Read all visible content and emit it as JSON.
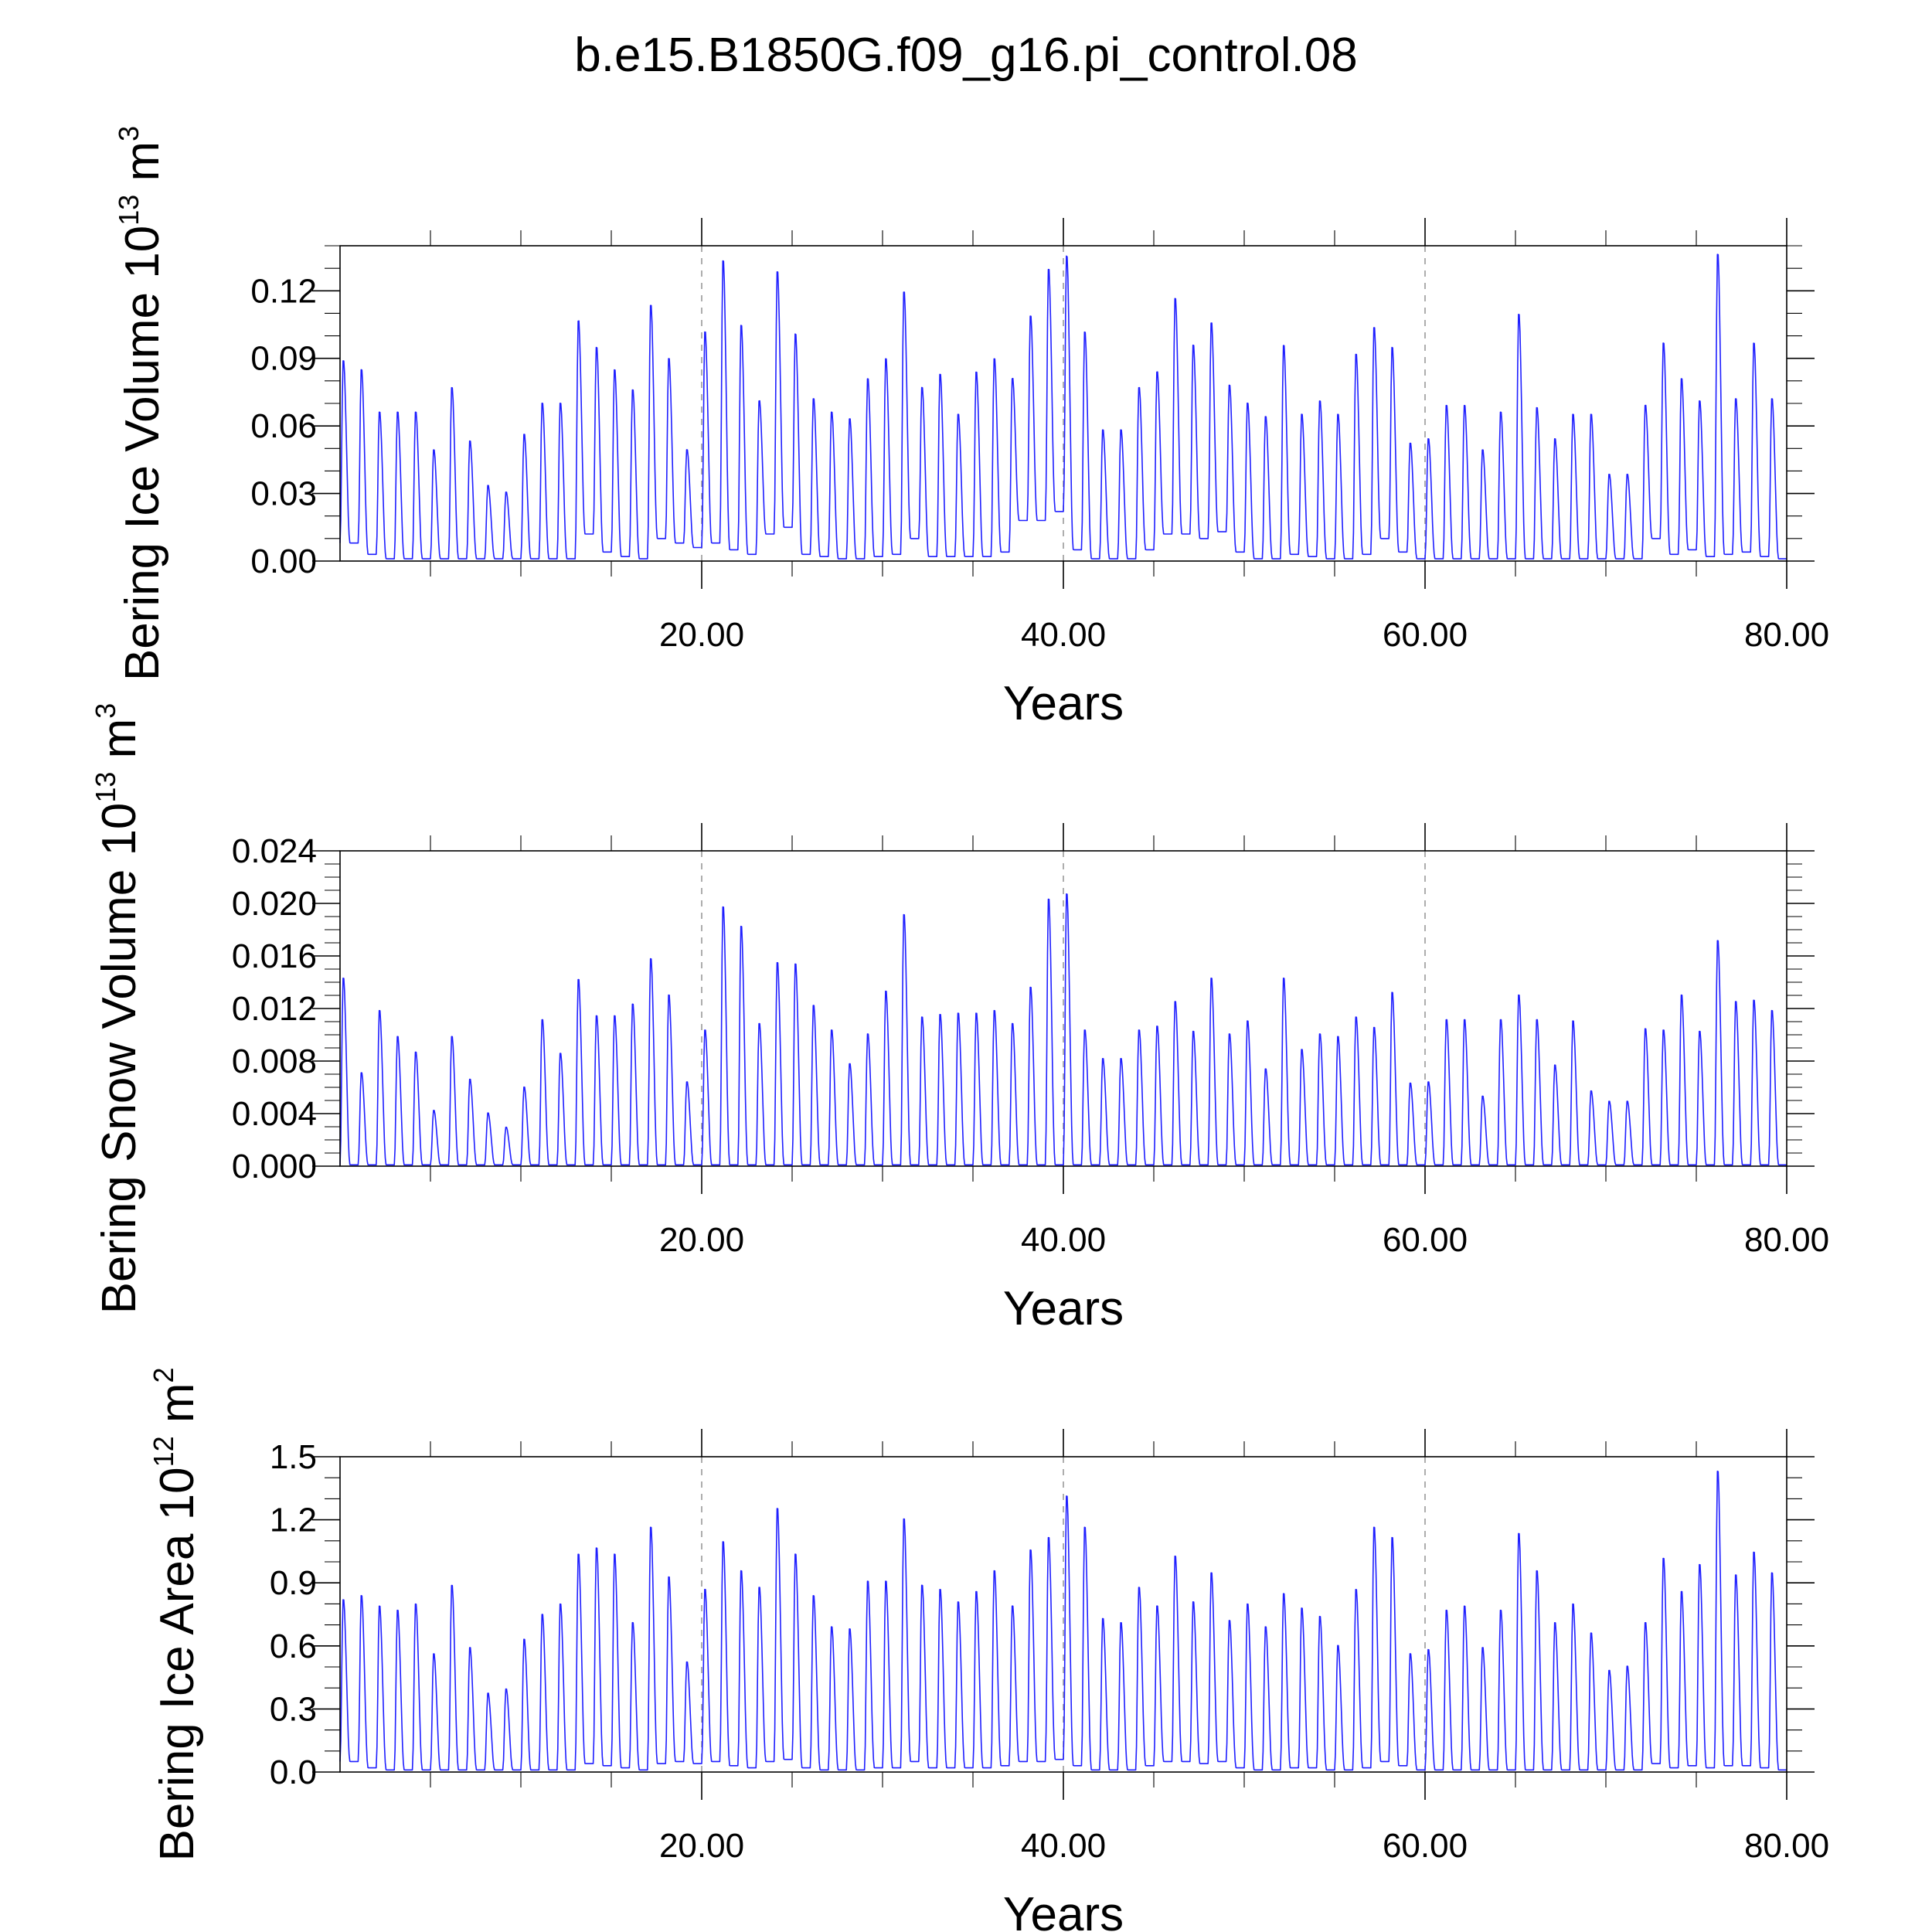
{
  "title": "b.e15.B1850G.f09_g16.pi_control.08",
  "chart_data": [
    {
      "type": "line",
      "id": "ice-volume",
      "ylabel": "Bering Ice Volume 10",
      "ylabel_exp": "13",
      "ylabel_unit": " m",
      "ylabel_unit_exp": "3",
      "xlabel": "Years",
      "xlim": [
        0,
        80
      ],
      "ylim": [
        0,
        0.14
      ],
      "yticks": [
        0,
        0.03,
        0.06,
        0.09,
        0.12
      ],
      "ytick_labels": [
        "0.00",
        "0.03",
        "0.06",
        "0.09",
        "0.12"
      ],
      "yminor": 0.01,
      "xticks": [
        20,
        40,
        60,
        80
      ],
      "xtick_labels": [
        "20.00",
        "40.00",
        "60.00",
        "80.00"
      ],
      "xminor": 5,
      "reflines_x": [
        20,
        40,
        60
      ],
      "series": [
        {
          "color": "#1f1fff",
          "peaks": [
            0.09,
            0.086,
            0.067,
            0.067,
            0.067,
            0.05,
            0.078,
            0.054,
            0.034,
            0.031,
            0.057,
            0.071,
            0.071,
            0.108,
            0.096,
            0.086,
            0.077,
            0.115,
            0.091,
            0.05,
            0.103,
            0.135,
            0.106,
            0.072,
            0.13,
            0.102,
            0.073,
            0.067,
            0.064,
            0.082,
            0.091,
            0.121,
            0.078,
            0.084,
            0.066,
            0.085,
            0.091,
            0.082,
            0.11,
            0.131,
            0.137,
            0.103,
            0.059,
            0.059,
            0.078,
            0.085,
            0.118,
            0.097,
            0.107,
            0.079,
            0.071,
            0.065,
            0.097,
            0.066,
            0.072,
            0.066,
            0.093,
            0.105,
            0.096,
            0.053,
            0.055,
            0.07,
            0.07,
            0.05,
            0.067,
            0.111,
            0.069,
            0.055,
            0.066,
            0.066,
            0.039,
            0.039,
            0.07,
            0.098,
            0.082,
            0.072,
            0.138,
            0.073,
            0.098,
            0.073
          ],
          "troughs": [
            0.008,
            0.003,
            0.001,
            0.001,
            0.001,
            0.001,
            0.001,
            0.001,
            0.001,
            0.001,
            0.001,
            0.001,
            0.001,
            0.012,
            0.004,
            0.002,
            0.001,
            0.01,
            0.008,
            0.006,
            0.008,
            0.005,
            0.003,
            0.012,
            0.015,
            0.003,
            0.002,
            0.001,
            0.001,
            0.002,
            0.003,
            0.01,
            0.002,
            0.002,
            0.002,
            0.002,
            0.004,
            0.018,
            0.018,
            0.022,
            0.005,
            0.001,
            0.001,
            0.001,
            0.005,
            0.012,
            0.012,
            0.01,
            0.013,
            0.004,
            0.001,
            0.001,
            0.003,
            0.002,
            0.001,
            0.001,
            0.003,
            0.01,
            0.004,
            0.001,
            0.001,
            0.001,
            0.001,
            0.001,
            0.001,
            0.001,
            0.001,
            0.001,
            0.001,
            0.001,
            0.001,
            0.001,
            0.01,
            0.003,
            0.005,
            0.002,
            0.003,
            0.004,
            0.002,
            0.001
          ]
        }
      ]
    },
    {
      "type": "line",
      "id": "snow-volume",
      "ylabel": "Bering Snow Volume 10",
      "ylabel_exp": "13",
      "ylabel_unit": " m",
      "ylabel_unit_exp": "3",
      "xlabel": "Years",
      "xlim": [
        0,
        80
      ],
      "ylim": [
        0,
        0.024
      ],
      "yticks": [
        0,
        0.004,
        0.008,
        0.012,
        0.016,
        0.02,
        0.024
      ],
      "ytick_labels": [
        "0.000",
        "0.004",
        "0.008",
        "0.012",
        "0.016",
        "0.020",
        "0.024"
      ],
      "yminor": 0.001,
      "xticks": [
        20,
        40,
        60,
        80
      ],
      "xtick_labels": [
        "20.00",
        "40.00",
        "60.00",
        "80.00"
      ],
      "xminor": 5,
      "reflines_x": [
        20,
        40,
        60
      ],
      "series": [
        {
          "color": "#1f1fff",
          "peaks": [
            0.0145,
            0.0072,
            0.012,
            0.01,
            0.0088,
            0.0043,
            0.01,
            0.0067,
            0.0041,
            0.003,
            0.0061,
            0.0113,
            0.0087,
            0.0144,
            0.0116,
            0.0116,
            0.0125,
            0.016,
            0.0132,
            0.0065,
            0.0105,
            0.02,
            0.0185,
            0.011,
            0.0157,
            0.0156,
            0.0124,
            0.0105,
            0.0079,
            0.0102,
            0.0135,
            0.0194,
            0.0115,
            0.0117,
            0.0118,
            0.0118,
            0.012,
            0.011,
            0.0138,
            0.0206,
            0.021,
            0.0105,
            0.0083,
            0.0083,
            0.0105,
            0.0108,
            0.0127,
            0.0104,
            0.0145,
            0.0102,
            0.0112,
            0.0075,
            0.0145,
            0.009,
            0.0102,
            0.01,
            0.0115,
            0.0107,
            0.0134,
            0.0064,
            0.0065,
            0.0113,
            0.0113,
            0.0054,
            0.0113,
            0.0132,
            0.0113,
            0.0078,
            0.0112,
            0.0058,
            0.005,
            0.005,
            0.0106,
            0.0105,
            0.0132,
            0.0104,
            0.0174,
            0.0127,
            0.0128,
            0.012
          ],
          "troughs": [
            0.0001,
            0.0001,
            0.0001,
            0.0001,
            0.0001,
            0.0001,
            0.0001,
            0.0001,
            0.0001,
            0.0001,
            0.0001,
            0.0001,
            0.0001,
            0.0001,
            0.0001,
            0.0001,
            0.0001,
            0.0001,
            0.0001,
            0.0001,
            0.0001,
            0.0001,
            0.0001,
            0.0001,
            0.0001,
            0.0001,
            0.0001,
            0.0001,
            0.0001,
            0.0001,
            0.0001,
            0.0001,
            0.0001,
            0.0001,
            0.0001,
            0.0001,
            0.0001,
            0.0001,
            0.0001,
            0.0001,
            0.0001,
            0.0001,
            0.0001,
            0.0001,
            0.0001,
            0.0001,
            0.0001,
            0.0001,
            0.0001,
            0.0001,
            0.0001,
            0.0001,
            0.0001,
            0.0001,
            0.0001,
            0.0001,
            0.0001,
            0.0001,
            0.0001,
            0.0001,
            0.0001,
            0.0001,
            0.0001,
            0.0001,
            0.0001,
            0.0001,
            0.0001,
            0.0001,
            0.0001,
            0.0001,
            0.0001,
            0.0001,
            0.0001,
            0.0001,
            0.0001,
            0.0001,
            0.0001,
            0.0001,
            0.0001,
            0.0001
          ]
        }
      ]
    },
    {
      "type": "line",
      "id": "ice-area",
      "ylabel": "Bering Ice Area 10",
      "ylabel_exp": "12",
      "ylabel_unit": " m",
      "ylabel_unit_exp": "2",
      "xlabel": "Years",
      "xlim": [
        0,
        80
      ],
      "ylim": [
        0,
        1.5
      ],
      "yticks": [
        0,
        0.3,
        0.6,
        0.9,
        1.2,
        1.5
      ],
      "ytick_labels": [
        "0.0",
        "0.3",
        "0.6",
        "0.9",
        "1.2",
        "1.5"
      ],
      "yminor": 0.1,
      "xticks": [
        20,
        40,
        60,
        80
      ],
      "xtick_labels": [
        "20.00",
        "40.00",
        "60.00",
        "80.00"
      ],
      "xminor": 5,
      "reflines_x": [
        20,
        40,
        60
      ],
      "series": [
        {
          "color": "#1f1fff",
          "peaks": [
            0.83,
            0.85,
            0.8,
            0.78,
            0.81,
            0.57,
            0.9,
            0.6,
            0.38,
            0.4,
            0.64,
            0.76,
            0.81,
            1.05,
            1.08,
            1.05,
            0.72,
            1.18,
            0.94,
            0.53,
            0.88,
            1.11,
            0.97,
            0.89,
            1.27,
            1.05,
            0.85,
            0.7,
            0.69,
            0.92,
            0.92,
            1.22,
            0.9,
            0.88,
            0.82,
            0.87,
            0.97,
            0.8,
            1.07,
            1.13,
            1.33,
            1.18,
            0.74,
            0.72,
            0.89,
            0.8,
            1.04,
            0.82,
            0.96,
            0.73,
            0.81,
            0.7,
            0.86,
            0.79,
            0.75,
            0.61,
            0.88,
            1.18,
            1.13,
            0.57,
            0.59,
            0.78,
            0.8,
            0.6,
            0.78,
            1.15,
            0.97,
            0.72,
            0.81,
            0.67,
            0.49,
            0.51,
            0.72,
            1.03,
            0.87,
            1.0,
            1.45,
            0.95,
            1.06,
            0.96
          ],
          "troughs": [
            0.05,
            0.02,
            0.01,
            0.01,
            0.01,
            0.01,
            0.01,
            0.01,
            0.01,
            0.01,
            0.01,
            0.01,
            0.01,
            0.04,
            0.03,
            0.02,
            0.01,
            0.04,
            0.05,
            0.04,
            0.05,
            0.03,
            0.02,
            0.05,
            0.06,
            0.02,
            0.01,
            0.01,
            0.01,
            0.02,
            0.02,
            0.05,
            0.02,
            0.02,
            0.02,
            0.02,
            0.03,
            0.05,
            0.05,
            0.06,
            0.03,
            0.01,
            0.01,
            0.01,
            0.03,
            0.05,
            0.05,
            0.04,
            0.05,
            0.02,
            0.01,
            0.01,
            0.02,
            0.02,
            0.01,
            0.01,
            0.02,
            0.05,
            0.03,
            0.01,
            0.01,
            0.01,
            0.01,
            0.01,
            0.01,
            0.01,
            0.01,
            0.01,
            0.01,
            0.01,
            0.01,
            0.01,
            0.04,
            0.02,
            0.03,
            0.02,
            0.03,
            0.03,
            0.02,
            0.01
          ]
        }
      ]
    }
  ]
}
